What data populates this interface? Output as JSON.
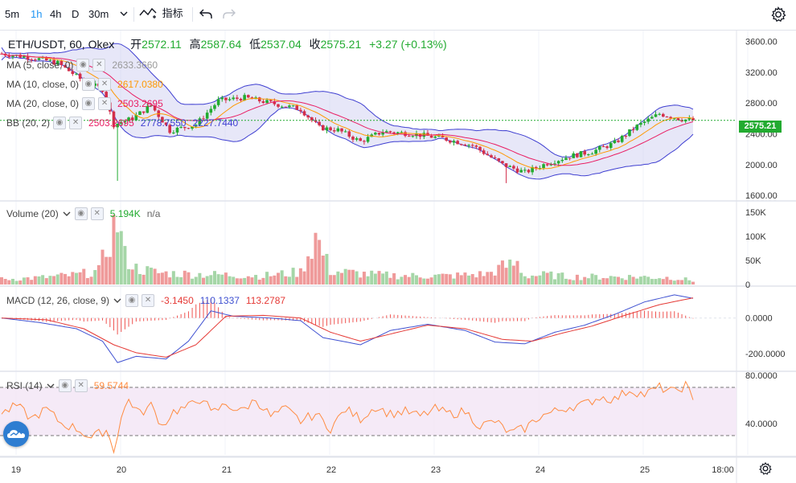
{
  "toolbar": {
    "intervals": [
      "5m",
      "1h",
      "4h",
      "D",
      "30m"
    ],
    "active_interval": "1h",
    "indicators_label": "指标",
    "icons": [
      "chevron-down-icon",
      "indicator-icon",
      "undo-icon",
      "redo-icon",
      "gear-icon"
    ]
  },
  "header": {
    "symbol": "ETH/USDT, 60, Okex",
    "open_label": "开",
    "open": "2572.11",
    "high_label": "高",
    "high": "2587.64",
    "low_label": "低",
    "low": "2537.04",
    "close_label": "收",
    "close": "2575.21",
    "change": "+3.27 (+0.13%)"
  },
  "indicators": {
    "ma5": {
      "label": "MA (5, close, 0)",
      "value": "2633.3660"
    },
    "ma10": {
      "label": "MA (10, close, 0)",
      "value": "2617.0380"
    },
    "ma20": {
      "label": "MA (20, close, 0)",
      "value": "2503.2695"
    },
    "bb": {
      "label": "BB (20, 2)",
      "v1": "2503.2695",
      "v2": "2778.7550",
      "v3": "2227.7440"
    },
    "volume": {
      "label": "Volume (20)",
      "value": "5.194K",
      "value2": "n/a"
    },
    "macd": {
      "label": "MACD (12, 26, close, 9)",
      "hist": "-3.1450",
      "macd": "110.1337",
      "signal": "113.2787"
    },
    "rsi": {
      "label": "RSI (14)",
      "value": "59.5744"
    }
  },
  "price_tag": "2575.21",
  "colors": {
    "up": "#22ab30",
    "down": "#d32f4b",
    "bb_fill": "#c9c9ef",
    "ma_orange": "#ff9800",
    "ma_pink": "#e91e63",
    "bb_blue": "#3f3fd1",
    "macd_blue": "#3f51d1",
    "macd_red": "#e53935",
    "rsi_line": "#ff8c42",
    "rsi_band": "#f3e5f5"
  },
  "chart_data": {
    "type": "candlestick",
    "symbol": "ETH/USDT",
    "x_ticks": [
      "19",
      "20",
      "21",
      "22",
      "23",
      "24",
      "25",
      "18:00"
    ],
    "price_axis": {
      "ticks": [
        "3600.00",
        "3200.00",
        "2800.00",
        "2400.00",
        "2000.00",
        "1600.00"
      ],
      "ylim": [
        1550,
        3720
      ]
    },
    "volume_axis": {
      "ticks": [
        "150K",
        "100K",
        "50K",
        "0"
      ],
      "ylim": [
        0,
        170
      ]
    },
    "macd_axis": {
      "ticks": [
        "0.0000",
        "-200.0000"
      ],
      "ylim": [
        -290,
        170
      ]
    },
    "rsi_axis": {
      "ticks": [
        "80.0000",
        "40.0000"
      ],
      "ylim": [
        14,
        82
      ],
      "band": [
        30,
        70
      ]
    },
    "price_anchors": [
      [
        0,
        3440
      ],
      [
        8,
        3390
      ],
      [
        15,
        3320
      ],
      [
        22,
        3080
      ],
      [
        27,
        2980
      ],
      [
        30,
        2520
      ],
      [
        35,
        2600
      ],
      [
        40,
        2770
      ],
      [
        45,
        2440
      ],
      [
        52,
        2520
      ],
      [
        58,
        2830
      ],
      [
        65,
        2870
      ],
      [
        72,
        2800
      ],
      [
        80,
        2720
      ],
      [
        85,
        2480
      ],
      [
        90,
        2450
      ],
      [
        96,
        2300
      ],
      [
        102,
        2430
      ],
      [
        110,
        2400
      ],
      [
        118,
        2340
      ],
      [
        126,
        2250
      ],
      [
        134,
        2000
      ],
      [
        140,
        1900
      ],
      [
        146,
        2020
      ],
      [
        152,
        2110
      ],
      [
        158,
        2170
      ],
      [
        164,
        2280
      ],
      [
        170,
        2500
      ],
      [
        176,
        2660
      ],
      [
        182,
        2590
      ],
      [
        185,
        2575
      ]
    ],
    "volume_anchors": [
      [
        0,
        11
      ],
      [
        10,
        14
      ],
      [
        20,
        20
      ],
      [
        26,
        28
      ],
      [
        29,
        95
      ],
      [
        31,
        135
      ],
      [
        33,
        58
      ],
      [
        36,
        34
      ],
      [
        42,
        24
      ],
      [
        50,
        22
      ],
      [
        60,
        20
      ],
      [
        70,
        18
      ],
      [
        80,
        26
      ],
      [
        84,
        100
      ],
      [
        88,
        28
      ],
      [
        100,
        20
      ],
      [
        110,
        18
      ],
      [
        120,
        18
      ],
      [
        130,
        22
      ],
      [
        134,
        36
      ],
      [
        138,
        44
      ],
      [
        140,
        18
      ],
      [
        146,
        20
      ],
      [
        152,
        16
      ],
      [
        160,
        16
      ],
      [
        170,
        16
      ],
      [
        180,
        14
      ],
      [
        185,
        8
      ]
    ],
    "macd_line": [
      [
        0,
        0
      ],
      [
        10,
        -25
      ],
      [
        20,
        -60
      ],
      [
        27,
        -130
      ],
      [
        31,
        -250
      ],
      [
        36,
        -215
      ],
      [
        44,
        -230
      ],
      [
        50,
        -130
      ],
      [
        56,
        40
      ],
      [
        62,
        10
      ],
      [
        72,
        0
      ],
      [
        80,
        -15
      ],
      [
        86,
        -110
      ],
      [
        96,
        -150
      ],
      [
        104,
        -70
      ],
      [
        114,
        -35
      ],
      [
        124,
        -70
      ],
      [
        132,
        -135
      ],
      [
        140,
        -145
      ],
      [
        148,
        -80
      ],
      [
        156,
        -40
      ],
      [
        164,
        20
      ],
      [
        172,
        90
      ],
      [
        180,
        130
      ],
      [
        185,
        110
      ]
    ],
    "signal_line": [
      [
        0,
        0
      ],
      [
        12,
        -10
      ],
      [
        22,
        -60
      ],
      [
        30,
        -150
      ],
      [
        36,
        -195
      ],
      [
        44,
        -220
      ],
      [
        52,
        -150
      ],
      [
        60,
        10
      ],
      [
        70,
        15
      ],
      [
        80,
        0
      ],
      [
        88,
        -80
      ],
      [
        96,
        -130
      ],
      [
        104,
        -90
      ],
      [
        114,
        -40
      ],
      [
        124,
        -60
      ],
      [
        134,
        -120
      ],
      [
        142,
        -130
      ],
      [
        150,
        -85
      ],
      [
        158,
        -45
      ],
      [
        166,
        10
      ],
      [
        176,
        75
      ],
      [
        185,
        113
      ]
    ],
    "rsi_anchors": [
      [
        0,
        48
      ],
      [
        4,
        55
      ],
      [
        8,
        44
      ],
      [
        12,
        52
      ],
      [
        16,
        40
      ],
      [
        20,
        36
      ],
      [
        24,
        28
      ],
      [
        28,
        35
      ],
      [
        30,
        18
      ],
      [
        32,
        45
      ],
      [
        34,
        60
      ],
      [
        37,
        48
      ],
      [
        40,
        55
      ],
      [
        43,
        38
      ],
      [
        46,
        50
      ],
      [
        50,
        54
      ],
      [
        54,
        62
      ],
      [
        56,
        48
      ],
      [
        60,
        56
      ],
      [
        64,
        50
      ],
      [
        68,
        60
      ],
      [
        72,
        46
      ],
      [
        76,
        52
      ],
      [
        80,
        42
      ],
      [
        84,
        48
      ],
      [
        88,
        36
      ],
      [
        92,
        52
      ],
      [
        96,
        44
      ],
      [
        100,
        54
      ],
      [
        104,
        48
      ],
      [
        108,
        50
      ],
      [
        112,
        46
      ],
      [
        116,
        52
      ],
      [
        120,
        48
      ],
      [
        124,
        50
      ],
      [
        128,
        38
      ],
      [
        132,
        42
      ],
      [
        136,
        32
      ],
      [
        140,
        36
      ],
      [
        144,
        46
      ],
      [
        148,
        50
      ],
      [
        152,
        54
      ],
      [
        156,
        56
      ],
      [
        160,
        62
      ],
      [
        164,
        60
      ],
      [
        168,
        68
      ],
      [
        172,
        64
      ],
      [
        176,
        70
      ],
      [
        180,
        66
      ],
      [
        183,
        72
      ],
      [
        185,
        59
      ]
    ]
  }
}
